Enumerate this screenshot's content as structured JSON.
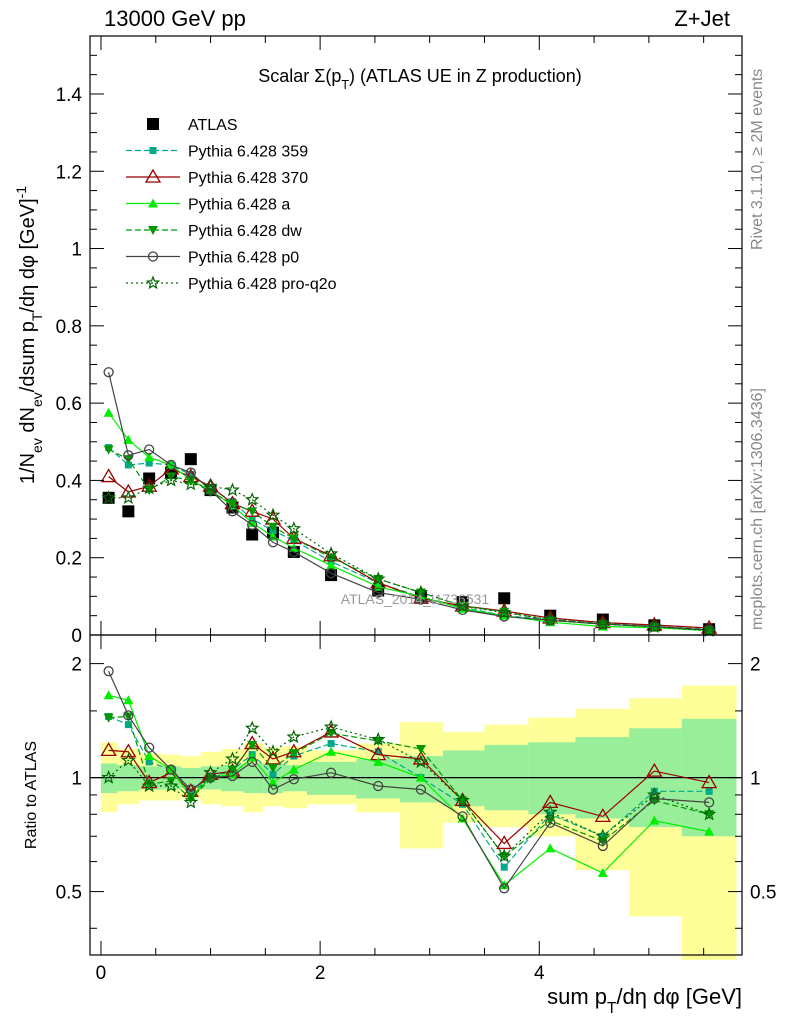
{
  "header": {
    "energy_label": "13000 GeV pp",
    "process_label": "Z+Jet",
    "title": "Scalar Σ(p_T) (ATLAS UE in Z production)",
    "side_text_top": "Rivet 3.1.10, ≥ 2M events",
    "side_text_bottom": "mcplots.cern.ch [arXiv:1306.3436]",
    "watermark": "ATLAS_2014_I1736531"
  },
  "chart_data": [
    {
      "type": "line",
      "panel": "main",
      "xlabel": "sum p_T/dη dφ [GeV]",
      "ylabel": "1/N_ev dN_ev/dsum p_T/dη dφ [GeV]^-1",
      "xlim": [
        -0.1,
        5.85
      ],
      "ylim": [
        0,
        1.55
      ],
      "yticks": [
        0,
        0.2,
        0.4,
        0.6,
        0.8,
        1,
        1.2,
        1.4
      ],
      "yticklabels": [
        "0",
        "0.2",
        "0.4",
        "0.6",
        "0.8",
        "1",
        "1.2",
        "1.4"
      ],
      "legend_position": "top-left",
      "x": [
        0.07,
        0.25,
        0.44,
        0.64,
        0.82,
        1.0,
        1.2,
        1.38,
        1.57,
        1.76,
        2.1,
        2.53,
        2.92,
        3.3,
        3.68,
        4.1,
        4.58,
        5.05,
        5.55
      ],
      "series": [
        {
          "name": "ATLAS",
          "color": "#000000",
          "marker": "square",
          "dash": "none",
          "values": [
            0.355,
            0.32,
            0.405,
            0.42,
            0.455,
            0.375,
            0.33,
            0.26,
            0.265,
            0.215,
            0.155,
            0.115,
            0.1,
            0.085,
            0.095,
            0.05,
            0.04,
            0.025,
            0.015
          ]
        },
        {
          "name": "Pythia 6.428 359",
          "color": "#00aa88",
          "marker": "smallsquare",
          "dash": "6,3",
          "values": [
            0.485,
            0.44,
            0.445,
            0.44,
            0.415,
            0.38,
            0.345,
            0.3,
            0.27,
            0.245,
            0.19,
            0.135,
            0.098,
            0.072,
            0.05,
            0.04,
            0.03,
            0.022,
            0.015
          ]
        },
        {
          "name": "Pythia 6.428 370",
          "color": "#990000",
          "marker": "triangle-open",
          "dash": "none",
          "values": [
            0.41,
            0.37,
            0.385,
            0.43,
            0.41,
            0.385,
            0.34,
            0.32,
            0.3,
            0.25,
            0.205,
            0.135,
            0.095,
            0.075,
            0.062,
            0.044,
            0.032,
            0.026,
            0.018
          ]
        },
        {
          "name": "Pythia 6.428 a",
          "color": "#00ee00",
          "marker": "triangle",
          "dash": "none",
          "values": [
            0.575,
            0.505,
            0.46,
            0.44,
            0.4,
            0.375,
            0.335,
            0.29,
            0.255,
            0.225,
            0.18,
            0.125,
            0.1,
            0.068,
            0.05,
            0.033,
            0.022,
            0.019,
            0.011
          ]
        },
        {
          "name": "Pythia 6.428 dw",
          "color": "#009900",
          "marker": "triangle-down",
          "dash": "6,3",
          "values": [
            0.48,
            0.455,
            0.375,
            0.41,
            0.4,
            0.37,
            0.34,
            0.32,
            0.28,
            0.25,
            0.2,
            0.145,
            0.11,
            0.075,
            0.06,
            0.038,
            0.028,
            0.022,
            0.012
          ]
        },
        {
          "name": "Pythia 6.428 p0",
          "color": "#444444",
          "marker": "circle-open",
          "dash": "none",
          "values": [
            0.68,
            0.465,
            0.48,
            0.44,
            0.42,
            0.375,
            0.32,
            0.285,
            0.24,
            0.215,
            0.16,
            0.11,
            0.092,
            0.065,
            0.048,
            0.038,
            0.028,
            0.022,
            0.013
          ]
        },
        {
          "name": "Pythia 6.428 pro-q2o",
          "color": "#006600",
          "marker": "star",
          "dash": "2,3",
          "values": [
            0.355,
            0.355,
            0.38,
            0.4,
            0.39,
            0.385,
            0.375,
            0.35,
            0.31,
            0.275,
            0.21,
            0.145,
            0.11,
            0.075,
            0.058,
            0.04,
            0.028,
            0.021,
            0.011
          ]
        }
      ]
    },
    {
      "type": "line",
      "panel": "ratio",
      "xlabel": "sum p_T/dη dφ [GeV]",
      "ylabel": "Ratio to ATLAS",
      "xlim": [
        -0.1,
        5.85
      ],
      "ylim": [
        0.34,
        2.38
      ],
      "ylog": true,
      "yticks": [
        0.5,
        1,
        2
      ],
      "yticklabels": [
        "0.5",
        "1",
        "2"
      ],
      "xticks": [
        0,
        2,
        4
      ],
      "xticklabels": [
        "0",
        "2",
        "4"
      ],
      "x": [
        0.07,
        0.25,
        0.44,
        0.64,
        0.82,
        1.0,
        1.2,
        1.38,
        1.57,
        1.76,
        2.1,
        2.53,
        2.92,
        3.3,
        3.68,
        4.1,
        4.58,
        5.05,
        5.55
      ],
      "bin_edges": [
        0.0,
        0.15,
        0.35,
        0.55,
        0.73,
        0.91,
        1.1,
        1.3,
        1.48,
        1.66,
        1.88,
        2.33,
        2.73,
        3.12,
        3.5,
        3.9,
        4.33,
        4.82,
        5.3,
        5.8
      ],
      "band_inner": [
        [
          0.91,
          1.09
        ],
        [
          0.92,
          1.08
        ],
        [
          0.93,
          1.07
        ],
        [
          0.93,
          1.07
        ],
        [
          0.94,
          1.06
        ],
        [
          0.93,
          1.07
        ],
        [
          0.92,
          1.08
        ],
        [
          0.91,
          1.09
        ],
        [
          0.91,
          1.09
        ],
        [
          0.92,
          1.08
        ],
        [
          0.9,
          1.1
        ],
        [
          0.88,
          1.12
        ],
        [
          0.86,
          1.14
        ],
        [
          0.84,
          1.18
        ],
        [
          0.82,
          1.22
        ],
        [
          0.8,
          1.24
        ],
        [
          0.78,
          1.28
        ],
        [
          0.74,
          1.35
        ],
        [
          0.7,
          1.43
        ]
      ],
      "band_outer": [
        [
          0.81,
          1.24
        ],
        [
          0.85,
          1.19
        ],
        [
          0.87,
          1.16
        ],
        [
          0.87,
          1.15
        ],
        [
          0.88,
          1.14
        ],
        [
          0.85,
          1.17
        ],
        [
          0.84,
          1.19
        ],
        [
          0.81,
          1.23
        ],
        [
          0.84,
          1.2
        ],
        [
          0.83,
          1.21
        ],
        [
          0.85,
          1.18
        ],
        [
          0.81,
          1.23
        ],
        [
          0.65,
          1.4
        ],
        [
          0.76,
          1.32
        ],
        [
          0.74,
          1.38
        ],
        [
          0.7,
          1.44
        ],
        [
          0.57,
          1.52
        ],
        [
          0.43,
          1.62
        ],
        [
          0.33,
          1.75
        ]
      ],
      "series": [
        {
          "name": "ATLAS",
          "color": "#000000",
          "marker": "none",
          "dash": "none",
          "values": [
            1,
            1,
            1,
            1,
            1,
            1,
            1,
            1,
            1,
            1,
            1,
            1,
            1,
            1,
            1,
            1,
            1,
            1,
            1
          ]
        },
        {
          "name": "Pythia 6.428 359",
          "color": "#00aa88",
          "marker": "smallsquare",
          "dash": "6,3",
          "values": [
            1.45,
            1.38,
            1.1,
            1.05,
            0.91,
            1.0,
            1.05,
            1.15,
            1.02,
            1.14,
            1.23,
            1.17,
            1.0,
            0.85,
            0.58,
            0.8,
            0.7,
            0.92,
            0.92
          ]
        },
        {
          "name": "Pythia 6.428 370",
          "color": "#990000",
          "marker": "triangle-open",
          "dash": "none",
          "values": [
            1.18,
            1.17,
            0.97,
            1.03,
            0.92,
            1.02,
            1.04,
            1.23,
            1.12,
            1.17,
            1.32,
            1.15,
            1.12,
            0.87,
            0.67,
            0.86,
            0.79,
            1.04,
            0.97
          ]
        },
        {
          "name": "Pythia 6.428 a",
          "color": "#00ee00",
          "marker": "triangle",
          "dash": "none",
          "values": [
            1.65,
            1.6,
            1.14,
            1.05,
            0.89,
            1.0,
            1.02,
            1.13,
            0.97,
            1.05,
            1.17,
            1.1,
            1.0,
            0.78,
            0.52,
            0.65,
            0.56,
            0.77,
            0.72
          ]
        },
        {
          "name": "Pythia 6.428 dw",
          "color": "#009900",
          "marker": "triangle-down",
          "dash": "6,3",
          "values": [
            1.44,
            1.45,
            0.96,
            0.98,
            0.88,
            0.99,
            1.05,
            1.22,
            1.06,
            1.16,
            1.31,
            1.25,
            1.19,
            0.87,
            0.62,
            0.77,
            0.68,
            0.87,
            0.8
          ]
        },
        {
          "name": "Pythia 6.428 p0",
          "color": "#444444",
          "marker": "circle-open",
          "dash": "none",
          "values": [
            1.91,
            1.46,
            1.2,
            1.05,
            0.93,
            1.0,
            1.01,
            1.1,
            0.93,
            0.99,
            1.03,
            0.95,
            0.93,
            0.79,
            0.51,
            0.76,
            0.66,
            0.88,
            0.86
          ]
        },
        {
          "name": "Pythia 6.428 pro-q2o",
          "color": "#006600",
          "marker": "star",
          "dash": "2,3",
          "values": [
            1.0,
            1.11,
            0.95,
            0.95,
            0.86,
            1.03,
            1.12,
            1.35,
            1.17,
            1.28,
            1.36,
            1.26,
            1.1,
            0.87,
            0.62,
            0.81,
            0.7,
            0.9,
            0.8
          ]
        }
      ]
    }
  ]
}
